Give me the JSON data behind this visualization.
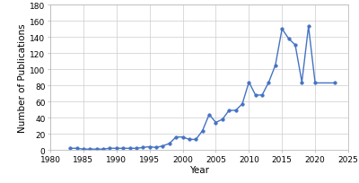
{
  "years": [
    1983,
    1984,
    1985,
    1986,
    1987,
    1988,
    1989,
    1990,
    1991,
    1992,
    1993,
    1994,
    1995,
    1996,
    1997,
    1998,
    1999,
    2000,
    2001,
    2002,
    2003,
    2004,
    2005,
    2006,
    2007,
    2008,
    2009,
    2010,
    2011,
    2012,
    2013,
    2014,
    2015,
    2016,
    2017,
    2018,
    2019,
    2020,
    2023
  ],
  "values": [
    2,
    2,
    1,
    1,
    1,
    1,
    2,
    2,
    2,
    2,
    2,
    3,
    4,
    3,
    5,
    8,
    16,
    16,
    13,
    13,
    24,
    44,
    34,
    38,
    49,
    49,
    57,
    84,
    68,
    68,
    84,
    105,
    150,
    138,
    130,
    84,
    153,
    83,
    83
  ],
  "line_color": "#4472C4",
  "marker": "o",
  "markersize": 2.5,
  "linewidth": 1.0,
  "xlabel": "Year",
  "ylabel": "Number of Publications",
  "xlim": [
    1980,
    2025
  ],
  "ylim": [
    0,
    180
  ],
  "yticks": [
    0,
    20,
    40,
    60,
    80,
    100,
    120,
    140,
    160,
    180
  ],
  "xticks": [
    1980,
    1985,
    1990,
    1995,
    2000,
    2005,
    2010,
    2015,
    2020,
    2025
  ],
  "grid_color": "#cccccc",
  "bg_color": "#ffffff",
  "spine_color": "#bbbbbb",
  "tick_color": "#888888",
  "tick_label_fontsize": 6.5,
  "axis_label_fontsize": 7.5
}
